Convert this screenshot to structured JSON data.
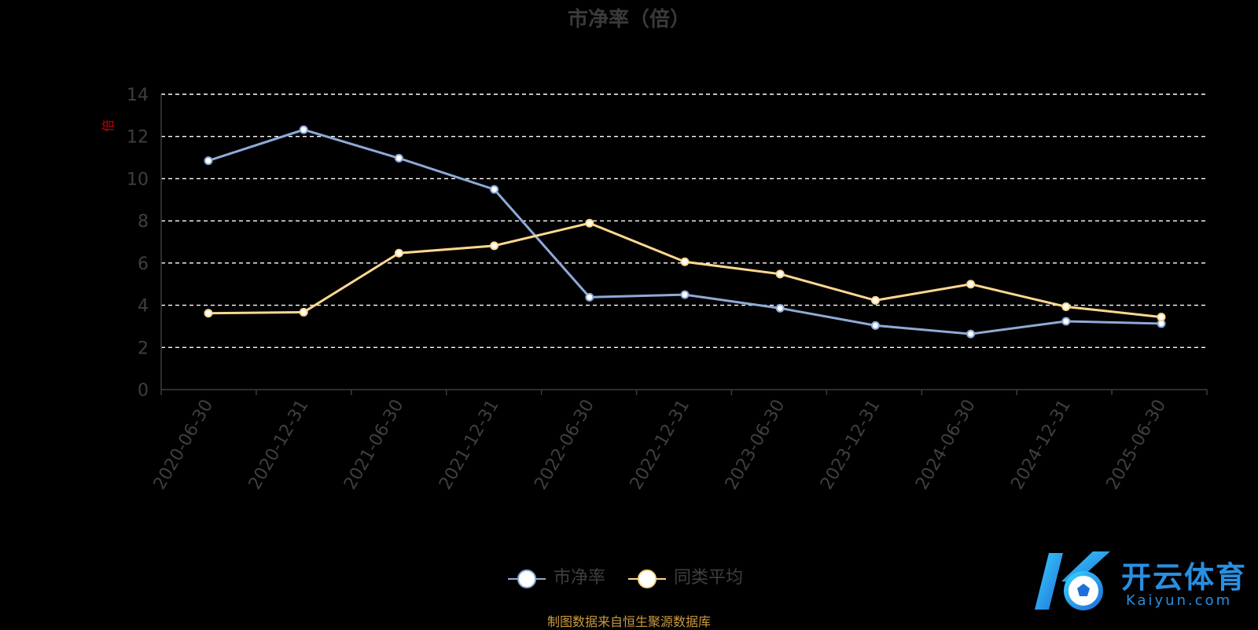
{
  "chart_data": {
    "type": "line",
    "title": "市净率（倍）",
    "ylabel": "倍",
    "xlabel": "",
    "ylim": [
      0,
      14
    ],
    "yticks": [
      0,
      2,
      4,
      6,
      8,
      10,
      12,
      14
    ],
    "grid": true,
    "legend_position": "bottom-center",
    "categories": [
      "2020-06-30",
      "2020-12-31",
      "2021-06-30",
      "2021-12-31",
      "2022-06-30",
      "2022-12-31",
      "2023-06-30",
      "2023-12-31",
      "2024-06-30",
      "2024-12-31",
      "2025-06-30"
    ],
    "series": [
      {
        "name": "市净率",
        "color": "#8eaad8",
        "values": [
          10.85,
          12.32,
          10.97,
          9.49,
          4.38,
          4.5,
          3.86,
          3.04,
          2.64,
          3.24,
          3.13
        ]
      },
      {
        "name": "同类平均",
        "color": "#ffd88f",
        "values": [
          3.62,
          3.67,
          6.47,
          6.82,
          7.89,
          6.06,
          5.48,
          4.23,
          5.0,
          3.93,
          3.44
        ]
      }
    ],
    "source": "制图数据来自恒生聚源数据库"
  },
  "watermark": {
    "name": "开云体育",
    "domain": "Kaiyun.com",
    "color": "#2a8fe0"
  }
}
